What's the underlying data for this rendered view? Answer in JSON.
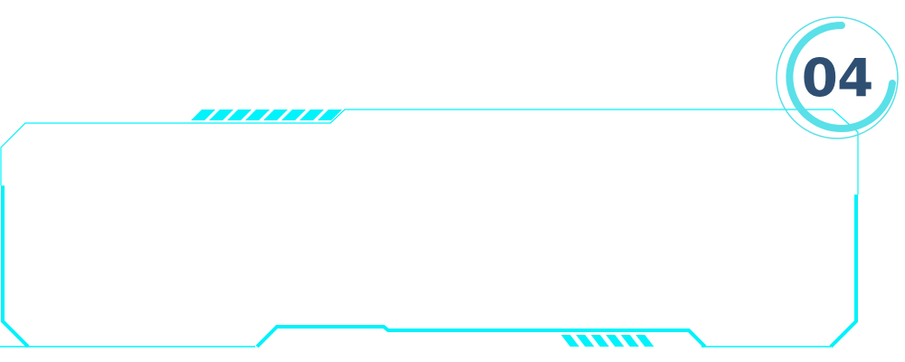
{
  "badge": {
    "number": "04"
  },
  "colors": {
    "accent": "#00f2fa",
    "ring": "#5ae0e8",
    "text": "#2f4f72"
  }
}
